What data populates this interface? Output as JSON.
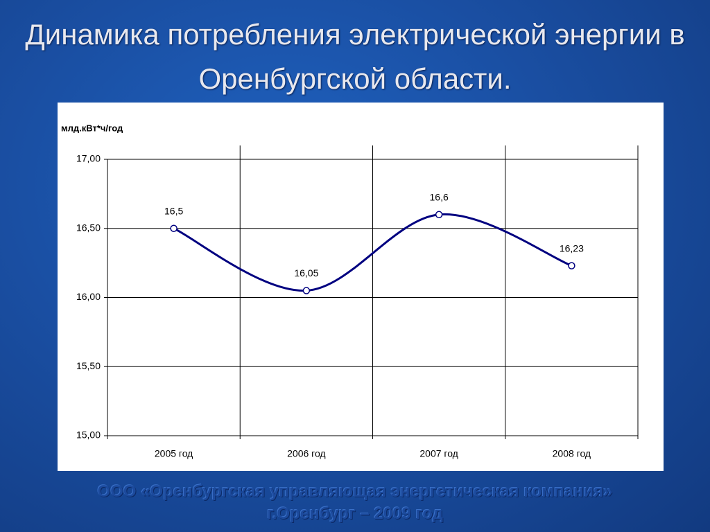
{
  "chart_data": {
    "type": "line",
    "title": "Динамика потребления электрической энергии в Оренбургской области.",
    "y_label": "млд.кВт*ч/год",
    "categories": [
      "2005 год",
      "2006 год",
      "2007 год",
      "2008 год"
    ],
    "values": [
      16.5,
      16.05,
      16.6,
      16.23
    ],
    "value_labels": [
      "16,5",
      "16,05",
      "16,6",
      "16,23"
    ],
    "color": "#000080",
    "ylim": [
      15,
      17
    ],
    "yticks": [
      {
        "value": 15,
        "label": "15,00"
      },
      {
        "value": 15.5,
        "label": "15,50"
      },
      {
        "value": 16,
        "label": "16,00"
      },
      {
        "value": 16.5,
        "label": "16,50"
      },
      {
        "value": 17,
        "label": "17,00"
      }
    ],
    "grid": true,
    "smooth": true
  },
  "footer": [
    "ООО «Оренбургская управляющая энергетическая компания»",
    "г.Оренбург – 2009 год"
  ]
}
